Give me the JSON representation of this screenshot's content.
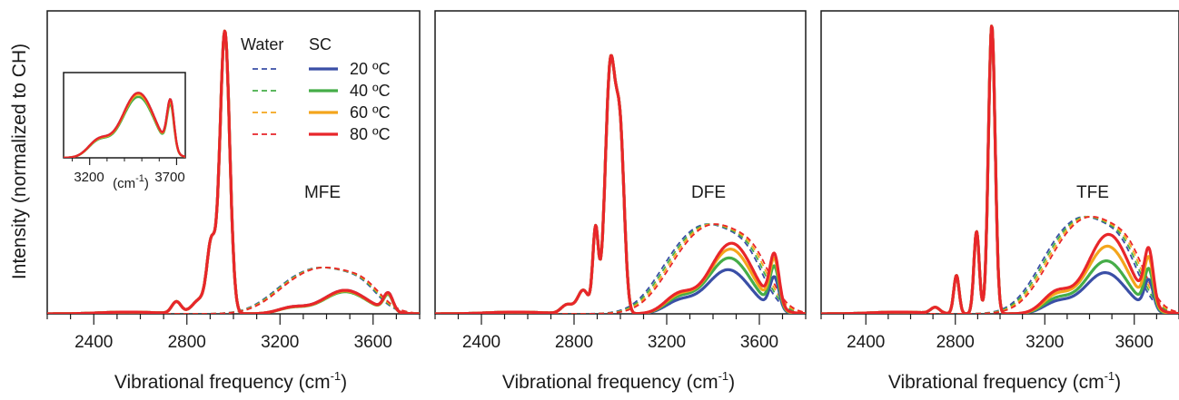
{
  "figure": {
    "ylabel": "Intensity (normalized to CH)",
    "legend": {
      "water_header": "Water",
      "sc_header": "SC",
      "entries": [
        "20 ºC",
        "40 ºC",
        "60 ºC",
        "80 ºC"
      ]
    },
    "inset": {
      "tick_left": "3200",
      "tick_right": "3700",
      "unit_base": "(cm",
      "unit_exp": "-1",
      "unit_close": ")"
    }
  },
  "chart_data": [
    {
      "type": "line",
      "panel_label": "MFE",
      "xlabel_base": "Vibrational frequency (cm",
      "xlabel_exp": "-1",
      "xlabel_close": ")",
      "ylabel": "Intensity (normalized to CH)",
      "xlim": [
        2200,
        3800
      ],
      "ylim": [
        0,
        1.03
      ],
      "xticks": [
        2400,
        2800,
        3200,
        3600
      ],
      "grid": false,
      "legend_position": "top-center",
      "temperatures": [
        "20 ºC",
        "40 ºC",
        "60 ºC",
        "80 ºC"
      ],
      "colors": [
        "#3a4fa6",
        "#45ad48",
        "#f4a51c",
        "#e8262a"
      ],
      "ch_peaks": [
        {
          "center": 2963,
          "width": 21,
          "amp": 0.96
        },
        {
          "center": 2905,
          "width": 18,
          "amp": 0.22
        },
        {
          "center": 2755,
          "width": 20,
          "amp": 0.04
        },
        {
          "center": 2860,
          "width": 35,
          "amp": 0.05
        }
      ],
      "water_series": [
        {
          "name": "Water 20 ºC",
          "peak_x": 3420,
          "peak_y": 0.155
        },
        {
          "name": "Water 40 ºC",
          "peak_x": 3425,
          "peak_y": 0.155
        },
        {
          "name": "Water 60 ºC",
          "peak_x": 3430,
          "peak_y": 0.155
        },
        {
          "name": "Water 80 ºC",
          "peak_x": 3435,
          "peak_y": 0.155
        }
      ],
      "sc_series": [
        {
          "name": "SC 20 ºC",
          "peak_x": 3480,
          "peak_y": 0.08,
          "free_oh_y": 0.06
        },
        {
          "name": "SC 40 ºC",
          "peak_x": 3480,
          "peak_y": 0.075,
          "free_oh_y": 0.055
        },
        {
          "name": "SC 60 ºC",
          "peak_x": 3480,
          "peak_y": 0.078,
          "free_oh_y": 0.058
        },
        {
          "name": "SC 80 ºC",
          "peak_x": 3480,
          "peak_y": 0.08,
          "free_oh_y": 0.06
        }
      ]
    },
    {
      "type": "line",
      "panel_label": "DFE",
      "xlabel_base": "Vibrational frequency (cm",
      "xlabel_exp": "-1",
      "xlabel_close": ")",
      "xlim": [
        2200,
        3800
      ],
      "ylim": [
        0,
        1.03
      ],
      "xticks": [
        2400,
        2800,
        3200,
        3600
      ],
      "grid": false,
      "temperatures": [
        "20 ºC",
        "40 ºC",
        "60 ºC",
        "80 ºC"
      ],
      "colors": [
        "#3a4fa6",
        "#45ad48",
        "#f4a51c",
        "#e8262a"
      ],
      "ch_peaks": [
        {
          "center": 2957,
          "width": 22,
          "amp": 0.84
        },
        {
          "center": 3000,
          "width": 18,
          "amp": 0.55
        },
        {
          "center": 2893,
          "width": 12,
          "amp": 0.28
        },
        {
          "center": 2840,
          "width": 25,
          "amp": 0.08
        },
        {
          "center": 2770,
          "width": 25,
          "amp": 0.03
        }
      ],
      "water_series": [
        {
          "name": "Water 20 ºC",
          "peak_x": 3420,
          "peak_y": 0.3
        },
        {
          "name": "Water 40 ºC",
          "peak_x": 3430,
          "peak_y": 0.3
        },
        {
          "name": "Water 60 ºC",
          "peak_x": 3440,
          "peak_y": 0.3
        },
        {
          "name": "Water 80 ºC",
          "peak_x": 3450,
          "peak_y": 0.3
        }
      ],
      "sc_series": [
        {
          "name": "SC 20 ºC",
          "peak_x": 3465,
          "peak_y": 0.15,
          "free_oh_y": 0.11
        },
        {
          "name": "SC 40 ºC",
          "peak_x": 3470,
          "peak_y": 0.19,
          "free_oh_y": 0.14
        },
        {
          "name": "SC 60 ºC",
          "peak_x": 3475,
          "peak_y": 0.22,
          "free_oh_y": 0.16
        },
        {
          "name": "SC 80 ºC",
          "peak_x": 3480,
          "peak_y": 0.24,
          "free_oh_y": 0.17
        }
      ]
    },
    {
      "type": "line",
      "panel_label": "TFE",
      "xlabel_base": "Vibrational frequency (cm",
      "xlabel_exp": "-1",
      "xlabel_close": ")",
      "xlim": [
        2200,
        3800
      ],
      "ylim": [
        0,
        1.03
      ],
      "xticks": [
        2400,
        2800,
        3200,
        3600
      ],
      "grid": false,
      "temperatures": [
        "20 ºC",
        "40 ºC",
        "60 ºC",
        "80 ºC"
      ],
      "colors": [
        "#3a4fa6",
        "#45ad48",
        "#f4a51c",
        "#e8262a"
      ],
      "ch_peaks": [
        {
          "center": 2963,
          "width": 15,
          "amp": 0.98
        },
        {
          "center": 2895,
          "width": 12,
          "amp": 0.28
        },
        {
          "center": 2805,
          "width": 12,
          "amp": 0.13
        },
        {
          "center": 2710,
          "width": 20,
          "amp": 0.02
        }
      ],
      "water_series": [
        {
          "name": "Water 20 ºC",
          "peak_x": 3420,
          "peak_y": 0.325
        },
        {
          "name": "Water 40 ºC",
          "peak_x": 3430,
          "peak_y": 0.325
        },
        {
          "name": "Water 60 ºC",
          "peak_x": 3440,
          "peak_y": 0.325
        },
        {
          "name": "Water 80 ºC",
          "peak_x": 3450,
          "peak_y": 0.325
        }
      ],
      "sc_series": [
        {
          "name": "SC 20 ºC",
          "peak_x": 3470,
          "peak_y": 0.14,
          "free_oh_y": 0.1
        },
        {
          "name": "SC 40 ºC",
          "peak_x": 3475,
          "peak_y": 0.18,
          "free_oh_y": 0.13
        },
        {
          "name": "SC 60 ºC",
          "peak_x": 3480,
          "peak_y": 0.23,
          "free_oh_y": 0.16
        },
        {
          "name": "SC 80 ºC",
          "peak_x": 3485,
          "peak_y": 0.27,
          "free_oh_y": 0.18
        }
      ]
    }
  ]
}
